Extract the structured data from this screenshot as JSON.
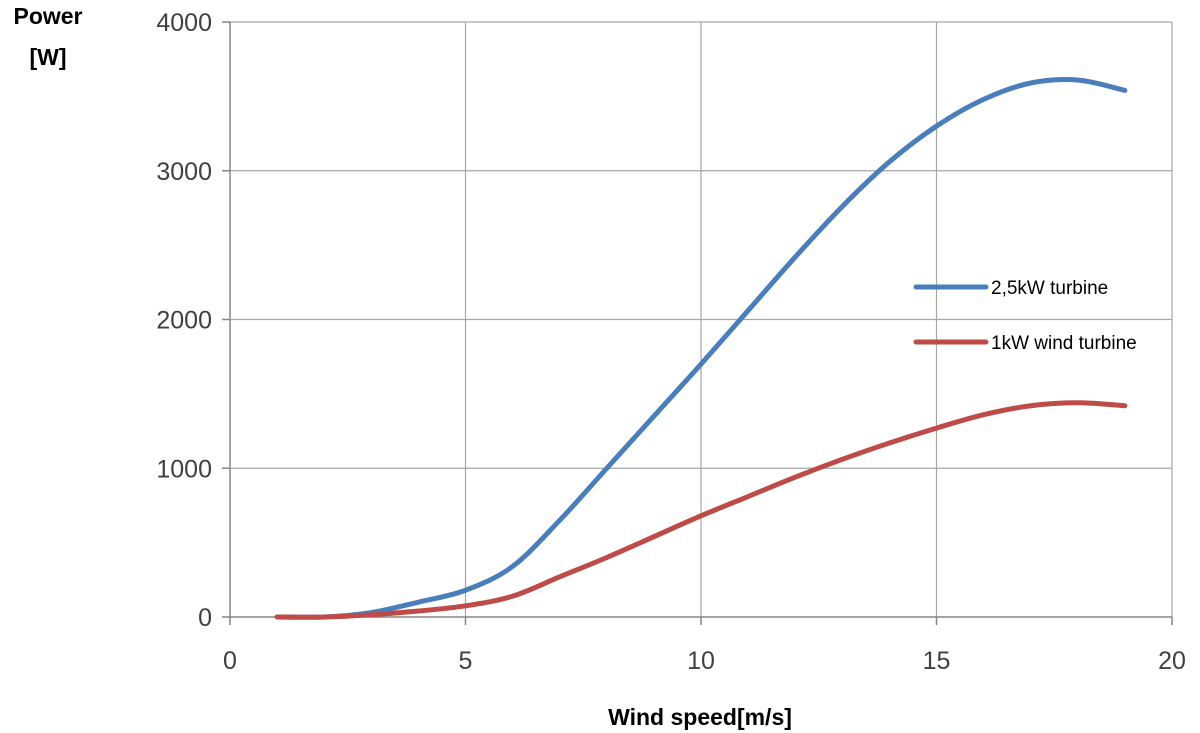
{
  "chart_data": {
    "type": "line",
    "title": "",
    "xlabel": "Wind speed[m/s]",
    "ylabel_lines": [
      "Power",
      "[W]"
    ],
    "xlim": [
      0,
      20
    ],
    "ylim": [
      0,
      4000
    ],
    "x_ticks": [
      "0",
      "5",
      "10",
      "15",
      "20"
    ],
    "y_ticks": [
      "0",
      "1000",
      "2000",
      "3000",
      "4000"
    ],
    "grid": true,
    "legend_position": "right",
    "x": [
      1,
      2,
      3,
      4,
      5,
      6,
      7,
      8,
      9,
      10,
      11,
      12,
      13,
      14,
      15,
      16,
      17,
      18,
      19
    ],
    "series": [
      {
        "name": "2,5kW turbine",
        "color": "#4a7ebb",
        "values": [
          0,
          0,
          30,
          100,
          180,
          340,
          650,
          1000,
          1350,
          1700,
          2060,
          2420,
          2760,
          3060,
          3300,
          3480,
          3590,
          3610,
          3540
        ]
      },
      {
        "name": "1kW wind turbine",
        "color": "#be4b48",
        "values": [
          0,
          0,
          15,
          40,
          75,
          140,
          270,
          400,
          540,
          680,
          810,
          940,
          1060,
          1170,
          1270,
          1360,
          1420,
          1440,
          1420
        ]
      }
    ]
  }
}
